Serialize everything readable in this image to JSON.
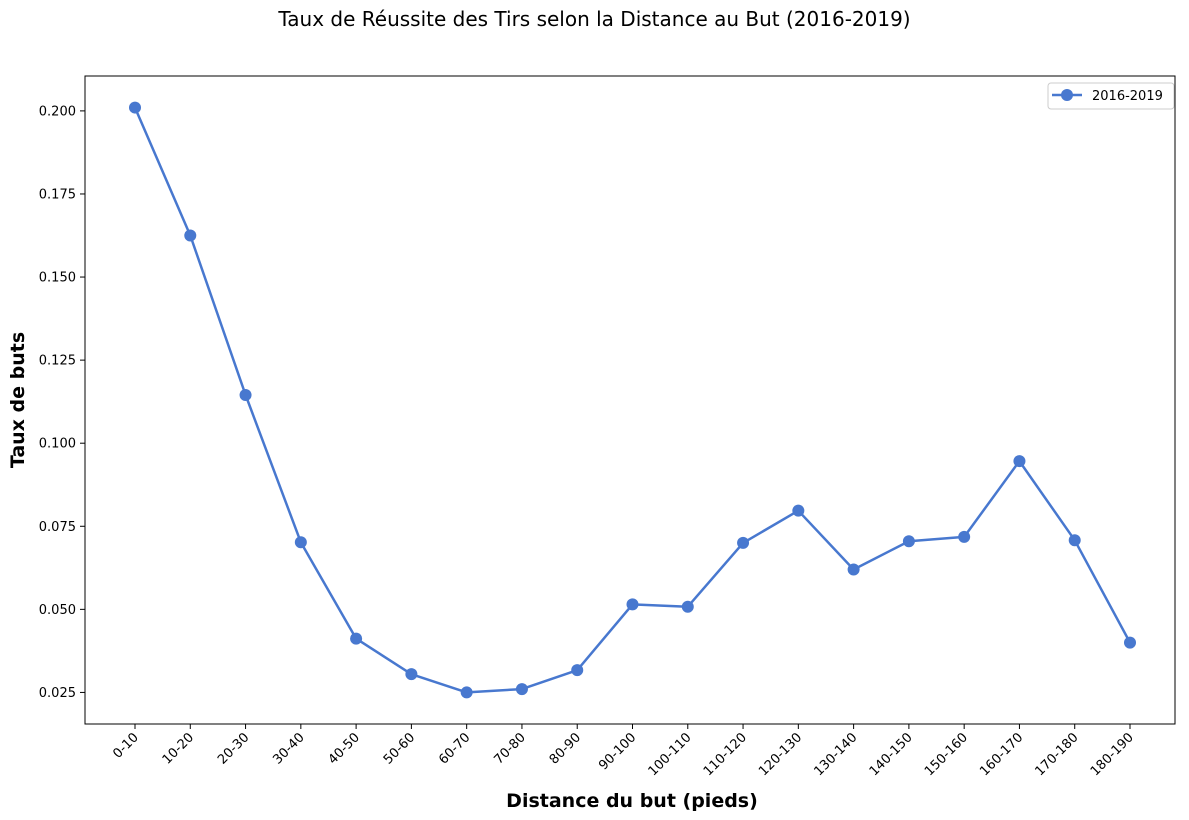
{
  "chart_data": {
    "type": "line",
    "title": "Taux de Réussite des Tirs selon la Distance au But (2016-2019)",
    "xlabel": "Distance du but (pieds)",
    "ylabel": "Taux de buts",
    "categories": [
      "0-10",
      "10-20",
      "20-30",
      "30-40",
      "40-50",
      "50-60",
      "60-70",
      "70-80",
      "80-90",
      "90-100",
      "100-110",
      "110-120",
      "120-130",
      "130-140",
      "140-150",
      "150-160",
      "160-170",
      "170-180",
      "180-190"
    ],
    "series": [
      {
        "name": "2016-2019",
        "color": "#4878cf",
        "values": [
          0.201,
          0.1625,
          0.1145,
          0.0702,
          0.0412,
          0.0305,
          0.025,
          0.026,
          0.0317,
          0.0515,
          0.0508,
          0.07,
          0.0797,
          0.062,
          0.0705,
          0.0718,
          0.0946,
          0.0708,
          0.04
        ]
      }
    ],
    "yticks": [
      "0.025",
      "0.050",
      "0.075",
      "0.100",
      "0.125",
      "0.150",
      "0.175",
      "0.200"
    ],
    "ylim": [
      0.0155,
      0.2105
    ],
    "grid": false,
    "legend_position": "top-right"
  }
}
